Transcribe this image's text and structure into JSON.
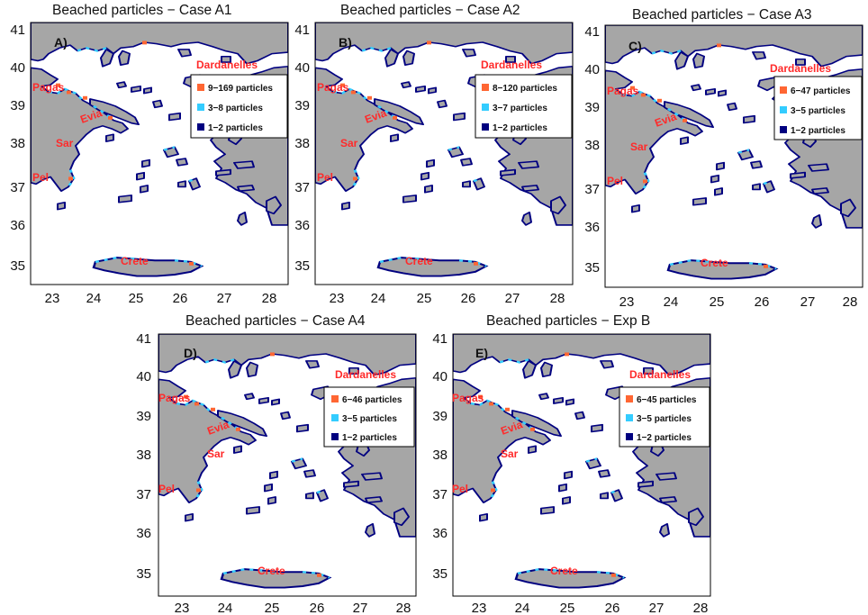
{
  "colors": {
    "land": "#a6a6a6",
    "sea": "#ffffff",
    "high": "#ff6633",
    "mid": "#33ccff",
    "low": "#000080",
    "place_label": "#ff2a2a"
  },
  "axes": {
    "x_ticks": [
      "23",
      "24",
      "25",
      "26",
      "27",
      "28"
    ],
    "y_ticks": [
      "41",
      "40",
      "39",
      "38",
      "37",
      "36",
      "35"
    ]
  },
  "places": {
    "dardanelles": "Dardanelles",
    "pagas": "Pagas",
    "evia": "Evia",
    "sar": "Sar",
    "pel": "Pel",
    "crete": "Crete"
  },
  "panels": [
    {
      "title": "Beached particles − Case A1",
      "label": "A)",
      "legend": [
        "9−169 particles",
        "3−8 particles",
        "1−2 particles"
      ]
    },
    {
      "title": "Beached particles − Case A2",
      "label": "B)",
      "legend": [
        "8−120 particles",
        "3−7 particles",
        "1−2 particles"
      ]
    },
    {
      "title": "Beached particles − Case A3",
      "label": "C)",
      "legend": [
        "6−47 particles",
        "3−5 particles",
        "1−2 particles"
      ]
    },
    {
      "title": "Beached particles − Case A4",
      "label": "D)",
      "legend": [
        "6−46 particles",
        "3−5 particles",
        "1−2 particles"
      ]
    },
    {
      "title": "Beached particles − Exp B",
      "label": "E)",
      "legend": [
        "6−45 particles",
        "3−5 particles",
        "1−2 particles"
      ]
    }
  ]
}
